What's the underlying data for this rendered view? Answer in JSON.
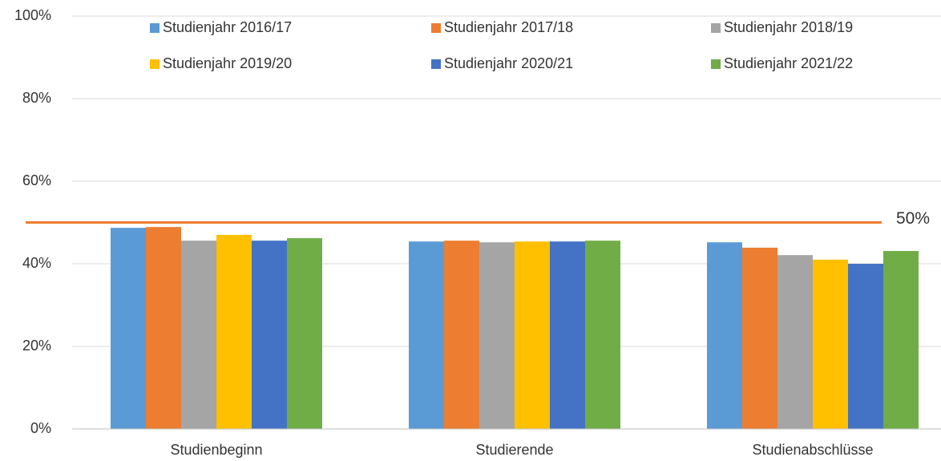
{
  "chart_data": {
    "type": "bar",
    "categories": [
      "Studienbeginn",
      "Studierende",
      "Studienabschlüsse"
    ],
    "series": [
      {
        "name": "Studienjahr 2016/17",
        "color": "#5b9bd5",
        "values": [
          48.7,
          45.4,
          45.2
        ]
      },
      {
        "name": "Studienjahr 2017/18",
        "color": "#ed7d31",
        "values": [
          48.9,
          45.6,
          43.9
        ]
      },
      {
        "name": "Studienjahr 2018/19",
        "color": "#a5a5a5",
        "values": [
          45.6,
          45.2,
          42.1
        ]
      },
      {
        "name": "Studienjahr 2019/20",
        "color": "#ffc000",
        "values": [
          47.0,
          45.4,
          41.0
        ]
      },
      {
        "name": "Studienjahr 2020/21",
        "color": "#4472c4",
        "values": [
          45.6,
          45.4,
          40.0
        ]
      },
      {
        "name": "Studienjahr 2021/22",
        "color": "#70ad47",
        "values": [
          46.2,
          45.6,
          43.1
        ]
      }
    ],
    "reference_line": {
      "value": 50,
      "label": "50%",
      "color": "#ed7d31"
    },
    "ylim": [
      0,
      100
    ],
    "yticks": [
      {
        "value": 0,
        "label": "0%"
      },
      {
        "value": 20,
        "label": "20%"
      },
      {
        "value": 40,
        "label": "40%"
      },
      {
        "value": 60,
        "label": "60%"
      },
      {
        "value": 80,
        "label": "80%"
      },
      {
        "value": 100,
        "label": "100%"
      }
    ],
    "grid": true,
    "legend": "top"
  }
}
